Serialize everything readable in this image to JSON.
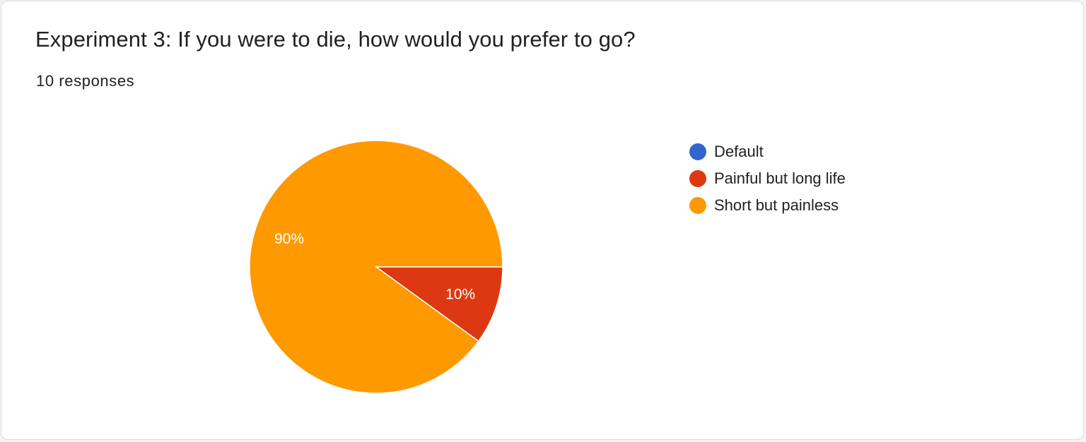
{
  "question": {
    "title": "Experiment 3: If you were to die, how would you prefer to go?",
    "responses_label": "10 responses"
  },
  "chart_data": {
    "type": "pie",
    "title": "Experiment 3: If you were to die, how would you prefer to go?",
    "total_responses": 10,
    "legend_position": "right",
    "categories": [
      "Default",
      "Painful but long life",
      "Short but painless"
    ],
    "values": [
      0,
      1,
      9
    ],
    "percent_labels": [
      "0%",
      "10%",
      "90%"
    ],
    "colors": [
      "#3366cc",
      "#dc3912",
      "#ff9900"
    ]
  }
}
